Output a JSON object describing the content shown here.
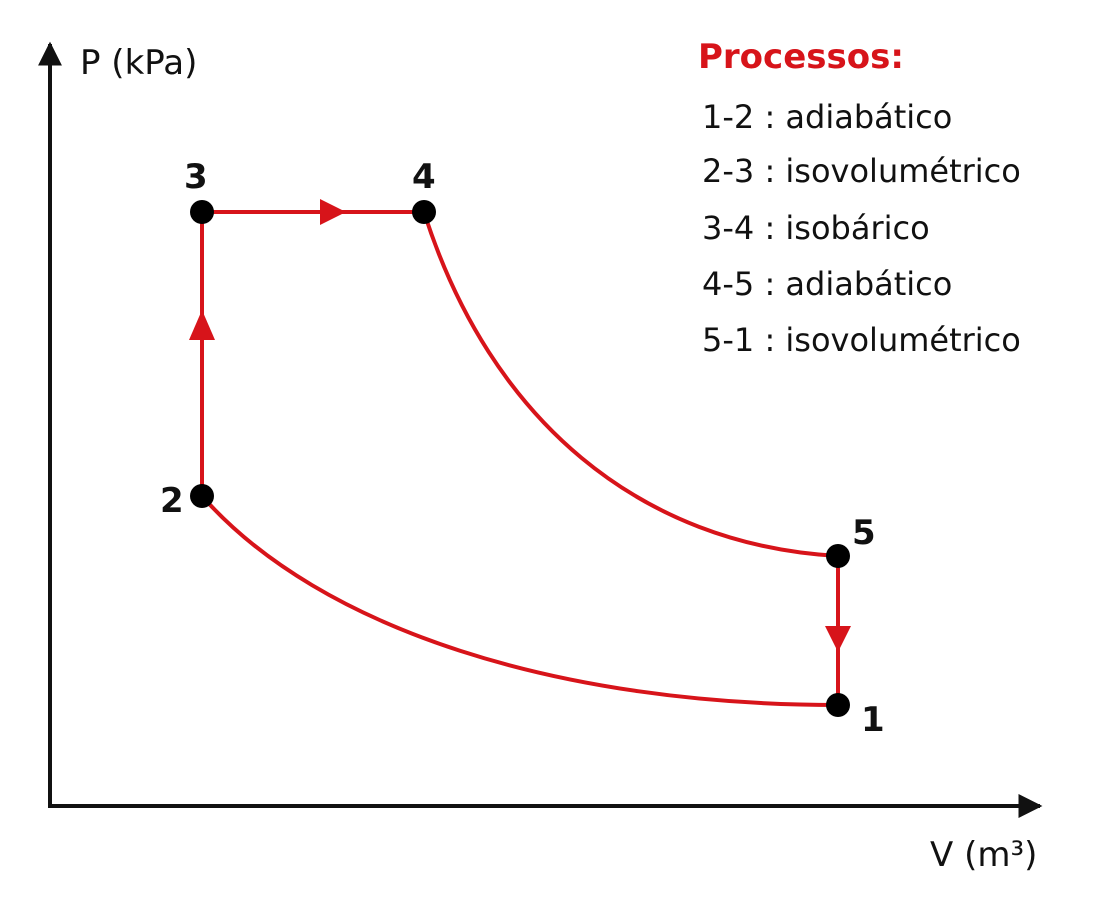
{
  "axes": {
    "y_label": "P (kPa)",
    "x_label": "V (m³)"
  },
  "points": [
    {
      "id": "1",
      "label": "1"
    },
    {
      "id": "2",
      "label": "2"
    },
    {
      "id": "3",
      "label": "3"
    },
    {
      "id": "4",
      "label": "4"
    },
    {
      "id": "5",
      "label": "5"
    }
  ],
  "legend": {
    "title": "Processos:",
    "items": [
      {
        "process": "1-2",
        "type": "adiabático",
        "text": "1-2 : adiabático"
      },
      {
        "process": "2-3",
        "type": "isovolumétrico",
        "text": "2-3 : isovolumétrico"
      },
      {
        "process": "3-4",
        "type": "isobárico",
        "text": "3-4 : isobárico"
      },
      {
        "process": "4-5",
        "type": "adiabático",
        "text": "4-5 : adiabático"
      },
      {
        "process": "5-1",
        "type": "isovolumétrico",
        "text": "5-1 : isovolumétrico"
      }
    ]
  },
  "colors": {
    "cycle": "#d7141a",
    "title": "#d7141a",
    "axis": "#111111",
    "point": "#000000"
  }
}
